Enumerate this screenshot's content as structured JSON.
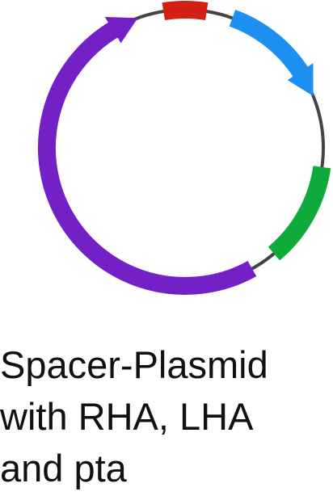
{
  "diagram": {
    "type": "plasmid-map",
    "backbone_color": "#444444",
    "features": [
      {
        "name": "red-segment",
        "color": "#d41f14",
        "start_deg": -9,
        "end_deg": 9,
        "arrow": false
      },
      {
        "name": "blue-arrow",
        "color": "#1c8ff0",
        "start_deg": 20,
        "end_deg": 68,
        "arrow": true
      },
      {
        "name": "green-segment",
        "color": "#0faa3a",
        "start_deg": 98,
        "end_deg": 140,
        "arrow": false
      },
      {
        "name": "purple-arrow",
        "color": "#7320c6",
        "start_deg": 151,
        "end_deg": 340,
        "arrow": true
      }
    ]
  },
  "caption": {
    "lines": [
      "Spacer-Plasmid",
      "with RHA, LHA",
      "and pta"
    ]
  }
}
